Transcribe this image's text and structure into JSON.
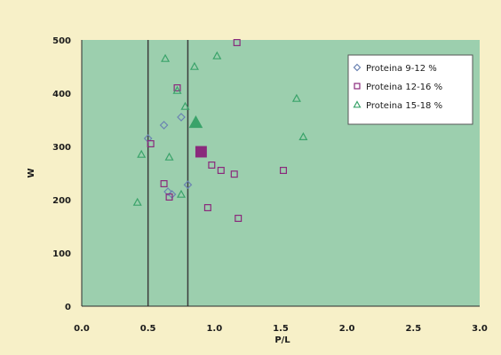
{
  "chart_data": {
    "type": "scatter",
    "title": "",
    "xlabel": "P/L",
    "ylabel": "W",
    "xlim": [
      0,
      3
    ],
    "ylim": [
      0,
      500
    ],
    "x_ticks": [
      "0.0",
      "0.5",
      "1.0",
      "1.5",
      "2.0",
      "2.5",
      "3.0"
    ],
    "y_ticks": [
      "0",
      "100",
      "200",
      "300",
      "400",
      "500"
    ],
    "grid": false,
    "legend_position": "top-right",
    "background_color": "#9ccfae",
    "reference_lines_x": [
      0.5,
      0.8
    ],
    "series": [
      {
        "name": "Proteina 9-12 %",
        "marker": "diamond",
        "color": "#6a82b2",
        "points": [
          [
            0.5,
            315
          ],
          [
            0.62,
            340
          ],
          [
            0.65,
            215
          ],
          [
            0.68,
            210
          ],
          [
            0.75,
            355
          ],
          [
            0.8,
            228
          ]
        ]
      },
      {
        "name": "Proteina 12-16 %",
        "marker": "square",
        "color": "#8a2a7c",
        "points": [
          [
            0.52,
            305
          ],
          [
            0.62,
            230
          ],
          [
            0.66,
            205
          ],
          [
            0.72,
            410
          ],
          [
            0.95,
            185
          ],
          [
            0.98,
            265
          ],
          [
            1.05,
            255
          ],
          [
            1.15,
            248
          ],
          [
            1.18,
            165
          ],
          [
            1.52,
            255
          ],
          [
            1.17,
            495
          ]
        ],
        "highlight": [
          0.9,
          290
        ]
      },
      {
        "name": "Proteina 15-18 %",
        "marker": "triangle",
        "color": "#3aa36a",
        "points": [
          [
            0.45,
            285
          ],
          [
            0.42,
            195
          ],
          [
            0.63,
            465
          ],
          [
            0.66,
            280
          ],
          [
            0.72,
            405
          ],
          [
            0.75,
            210
          ],
          [
            0.85,
            450
          ],
          [
            1.02,
            470
          ],
          [
            1.62,
            390
          ],
          [
            1.67,
            318
          ],
          [
            0.78,
            375
          ]
        ],
        "highlight": [
          0.86,
          345
        ]
      }
    ]
  }
}
